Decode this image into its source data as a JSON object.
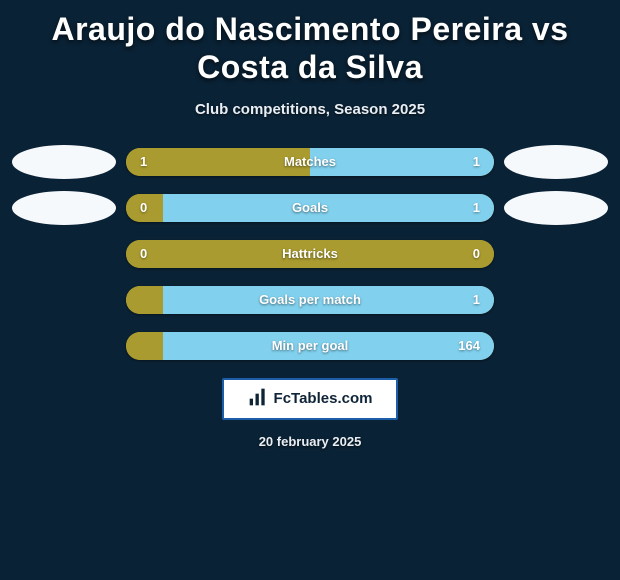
{
  "title": "Araujo do Nascimento Pereira vs Costa da Silva",
  "subtitle": "Club competitions, Season 2025",
  "date": "20 february 2025",
  "footer_brand": "FcTables.com",
  "colors": {
    "background": "#0a2235",
    "left_bar": "#a99b2f",
    "right_bar": "#81d0ed",
    "avatar_fill": "#f6f9fc"
  },
  "chart": {
    "type": "comparison-bars",
    "rows": [
      {
        "label": "Matches",
        "left": "1",
        "right": "1",
        "left_pct": 50,
        "right_pct": 50,
        "show_avatars": true
      },
      {
        "label": "Goals",
        "left": "0",
        "right": "1",
        "left_pct": 10,
        "right_pct": 90,
        "show_avatars": true
      },
      {
        "label": "Hattricks",
        "left": "0",
        "right": "0",
        "left_pct": 100,
        "right_pct": 0,
        "show_avatars": false
      },
      {
        "label": "Goals per match",
        "left": "",
        "right": "1",
        "left_pct": 10,
        "right_pct": 90,
        "show_avatars": false
      },
      {
        "label": "Min per goal",
        "left": "",
        "right": "164",
        "left_pct": 10,
        "right_pct": 90,
        "show_avatars": false
      }
    ]
  }
}
